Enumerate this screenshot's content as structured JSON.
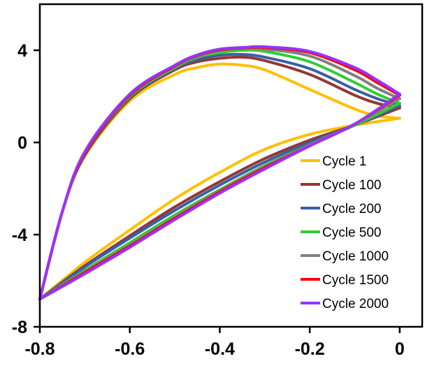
{
  "chart_data": {
    "type": "line",
    "title": "",
    "xlabel": "",
    "ylabel": "",
    "xlim": [
      -0.8,
      0.05
    ],
    "ylim": [
      -8,
      6
    ],
    "grid": false,
    "legend_position": "right",
    "x_ticks": [
      {
        "value": -0.8,
        "label": "-0.8"
      },
      {
        "value": -0.6,
        "label": "-0.6"
      },
      {
        "value": -0.4,
        "label": "-0.4"
      },
      {
        "value": -0.2,
        "label": "-0.2"
      },
      {
        "value": 0,
        "label": "0"
      }
    ],
    "y_ticks": [
      {
        "value": 4,
        "label": "4"
      },
      {
        "value": 0,
        "label": "0"
      },
      {
        "value": -4,
        "label": "-4"
      },
      {
        "value": -8,
        "label": "-8"
      }
    ],
    "series": [
      {
        "name": "Cycle 1",
        "color": "#FFC000",
        "anodic": [
          [
            -0.8,
            -6.8
          ],
          [
            -0.7,
            -5.2
          ],
          [
            -0.6,
            -3.8
          ],
          [
            -0.5,
            -2.45
          ],
          [
            -0.4,
            -1.3
          ],
          [
            -0.3,
            -0.3
          ],
          [
            -0.2,
            0.35
          ],
          [
            -0.1,
            0.75
          ],
          [
            0,
            1.05
          ]
        ],
        "cathodic": [
          [
            0,
            1.05
          ],
          [
            -0.05,
            1.15
          ],
          [
            -0.1,
            1.45
          ],
          [
            -0.2,
            2.3
          ],
          [
            -0.3,
            3.15
          ],
          [
            -0.35,
            3.35
          ],
          [
            -0.4,
            3.4
          ],
          [
            -0.45,
            3.25
          ],
          [
            -0.5,
            2.95
          ],
          [
            -0.6,
            1.8
          ],
          [
            -0.7,
            -0.6
          ],
          [
            -0.75,
            -3.0
          ],
          [
            -0.8,
            -6.8
          ]
        ]
      },
      {
        "name": "Cycle 100",
        "color": "#943634",
        "anodic": [
          [
            -0.8,
            -6.8
          ],
          [
            -0.7,
            -5.35
          ],
          [
            -0.6,
            -4.05
          ],
          [
            -0.5,
            -2.8
          ],
          [
            -0.4,
            -1.7
          ],
          [
            -0.3,
            -0.7
          ],
          [
            -0.2,
            0.1
          ],
          [
            -0.1,
            0.75
          ],
          [
            0,
            1.5
          ]
        ],
        "cathodic": [
          [
            0,
            1.5
          ],
          [
            -0.05,
            1.7
          ],
          [
            -0.1,
            2.05
          ],
          [
            -0.2,
            2.95
          ],
          [
            -0.3,
            3.55
          ],
          [
            -0.35,
            3.7
          ],
          [
            -0.4,
            3.65
          ],
          [
            -0.45,
            3.5
          ],
          [
            -0.5,
            3.15
          ],
          [
            -0.6,
            1.9
          ],
          [
            -0.7,
            -0.55
          ],
          [
            -0.75,
            -3.0
          ],
          [
            -0.8,
            -6.8
          ]
        ]
      },
      {
        "name": "Cycle 200",
        "color": "#3A5FA8",
        "anodic": [
          [
            -0.8,
            -6.8
          ],
          [
            -0.7,
            -5.4
          ],
          [
            -0.6,
            -4.15
          ],
          [
            -0.5,
            -2.95
          ],
          [
            -0.4,
            -1.85
          ],
          [
            -0.3,
            -0.85
          ],
          [
            -0.2,
            0.0
          ],
          [
            -0.1,
            0.75
          ],
          [
            0,
            1.6
          ]
        ],
        "cathodic": [
          [
            0,
            1.6
          ],
          [
            -0.05,
            1.9
          ],
          [
            -0.1,
            2.3
          ],
          [
            -0.2,
            3.2
          ],
          [
            -0.3,
            3.7
          ],
          [
            -0.35,
            3.82
          ],
          [
            -0.4,
            3.78
          ],
          [
            -0.45,
            3.6
          ],
          [
            -0.5,
            3.2
          ],
          [
            -0.6,
            1.95
          ],
          [
            -0.7,
            -0.5
          ],
          [
            -0.75,
            -3.0
          ],
          [
            -0.8,
            -6.8
          ]
        ]
      },
      {
        "name": "Cycle 500",
        "color": "#33CC33",
        "anodic": [
          [
            -0.8,
            -6.8
          ],
          [
            -0.7,
            -5.55
          ],
          [
            -0.6,
            -4.35
          ],
          [
            -0.5,
            -3.15
          ],
          [
            -0.4,
            -2.05
          ],
          [
            -0.3,
            -1.0
          ],
          [
            -0.2,
            -0.1
          ],
          [
            -0.1,
            0.75
          ],
          [
            0,
            1.7
          ]
        ],
        "cathodic": [
          [
            0,
            1.7
          ],
          [
            -0.05,
            2.1
          ],
          [
            -0.1,
            2.6
          ],
          [
            -0.2,
            3.5
          ],
          [
            -0.3,
            3.95
          ],
          [
            -0.35,
            4.0
          ],
          [
            -0.4,
            3.9
          ],
          [
            -0.45,
            3.7
          ],
          [
            -0.5,
            3.25
          ],
          [
            -0.6,
            2.0
          ],
          [
            -0.7,
            -0.45
          ],
          [
            -0.75,
            -3.0
          ],
          [
            -0.8,
            -6.8
          ]
        ]
      },
      {
        "name": "Cycle 1000",
        "color": "#808080",
        "anodic": [
          [
            -0.8,
            -6.8
          ],
          [
            -0.7,
            -5.6
          ],
          [
            -0.6,
            -4.45
          ],
          [
            -0.5,
            -3.25
          ],
          [
            -0.4,
            -2.1
          ],
          [
            -0.3,
            -1.05
          ],
          [
            -0.2,
            -0.1
          ],
          [
            -0.1,
            0.8
          ],
          [
            0,
            1.9
          ]
        ],
        "cathodic": [
          [
            0,
            1.9
          ],
          [
            -0.05,
            2.35
          ],
          [
            -0.1,
            2.9
          ],
          [
            -0.2,
            3.75
          ],
          [
            -0.3,
            4.05
          ],
          [
            -0.35,
            4.1
          ],
          [
            -0.4,
            4.0
          ],
          [
            -0.45,
            3.75
          ],
          [
            -0.5,
            3.3
          ],
          [
            -0.6,
            2.05
          ],
          [
            -0.7,
            -0.45
          ],
          [
            -0.75,
            -3.0
          ],
          [
            -0.8,
            -6.8
          ]
        ]
      },
      {
        "name": "Cycle 1500",
        "color": "#FF0000",
        "anodic": [
          [
            -0.8,
            -6.8
          ],
          [
            -0.7,
            -5.65
          ],
          [
            -0.6,
            -4.5
          ],
          [
            -0.5,
            -3.3
          ],
          [
            -0.4,
            -2.15
          ],
          [
            -0.3,
            -1.1
          ],
          [
            -0.2,
            -0.15
          ],
          [
            -0.1,
            0.8
          ],
          [
            0,
            2.05
          ]
        ],
        "cathodic": [
          [
            0,
            2.05
          ],
          [
            -0.05,
            2.6
          ],
          [
            -0.1,
            3.15
          ],
          [
            -0.2,
            3.9
          ],
          [
            -0.3,
            4.12
          ],
          [
            -0.35,
            4.1
          ],
          [
            -0.4,
            4.02
          ],
          [
            -0.45,
            3.78
          ],
          [
            -0.5,
            3.32
          ],
          [
            -0.6,
            2.05
          ],
          [
            -0.7,
            -0.45
          ],
          [
            -0.75,
            -3.0
          ],
          [
            -0.8,
            -6.8
          ]
        ]
      },
      {
        "name": "Cycle 2000",
        "color": "#9933FF",
        "anodic": [
          [
            -0.8,
            -6.8
          ],
          [
            -0.7,
            -5.7
          ],
          [
            -0.6,
            -4.55
          ],
          [
            -0.5,
            -3.35
          ],
          [
            -0.4,
            -2.2
          ],
          [
            -0.3,
            -1.15
          ],
          [
            -0.2,
            -0.15
          ],
          [
            -0.1,
            0.8
          ],
          [
            0,
            2.1
          ]
        ],
        "cathodic": [
          [
            0,
            2.1
          ],
          [
            -0.05,
            2.7
          ],
          [
            -0.1,
            3.25
          ],
          [
            -0.2,
            3.95
          ],
          [
            -0.3,
            4.15
          ],
          [
            -0.35,
            4.12
          ],
          [
            -0.4,
            4.05
          ],
          [
            -0.45,
            3.8
          ],
          [
            -0.5,
            3.35
          ],
          [
            -0.6,
            2.1
          ],
          [
            -0.7,
            -0.4
          ],
          [
            -0.75,
            -3.0
          ],
          [
            -0.8,
            -6.8
          ]
        ]
      }
    ]
  }
}
